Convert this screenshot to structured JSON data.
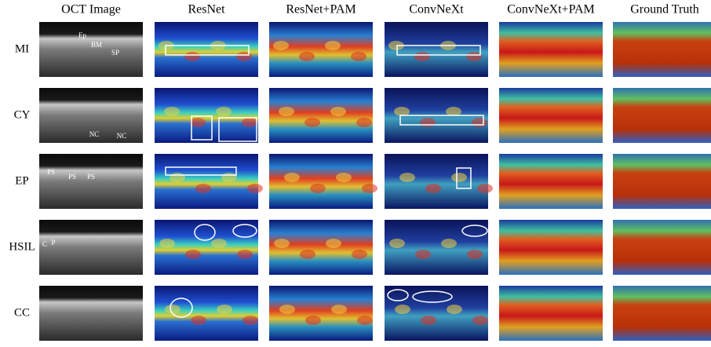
{
  "columns": [
    "OCT Image",
    "ResNet",
    "ResNet+PAM",
    "ConvNeXt",
    "ConvNeXt+PAM",
    "Ground Truth"
  ],
  "rows": [
    {
      "label": "MI",
      "annotations": [
        "Ep",
        "BM",
        "SP"
      ]
    },
    {
      "label": "CY",
      "annotations": [
        "NC",
        "NC"
      ]
    },
    {
      "label": "EP",
      "annotations": [
        "PS",
        "PS",
        "PS"
      ]
    },
    {
      "label": "HSIL",
      "annotations": [
        "C",
        "P"
      ]
    },
    {
      "label": "CC",
      "annotations": []
    }
  ]
}
